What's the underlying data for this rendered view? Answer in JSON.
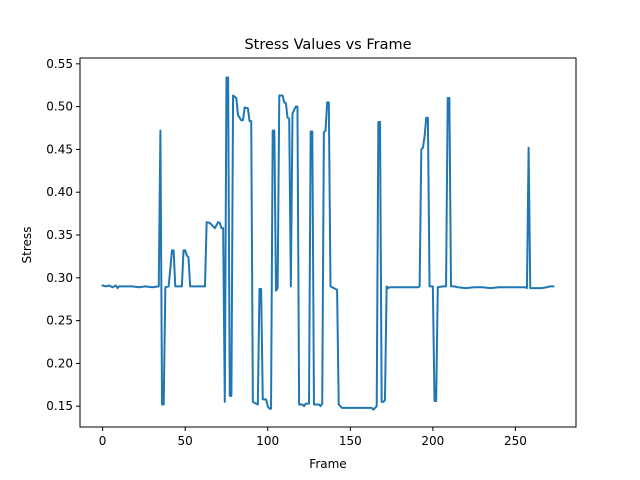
{
  "chart_data": {
    "type": "line",
    "title": "Stress Values vs Frame",
    "xlabel": "Frame",
    "ylabel": "Stress",
    "xlim": [
      -13.7,
      286.7
    ],
    "ylim": [
      0.1257,
      0.5568
    ],
    "xticks": [
      0,
      50,
      100,
      150,
      200,
      250
    ],
    "yticks": [
      0.15,
      0.2,
      0.25,
      0.3,
      0.35,
      0.4,
      0.45,
      0.5,
      0.55
    ],
    "ytick_labels": [
      "0.15",
      "0.20",
      "0.25",
      "0.30",
      "0.35",
      "0.40",
      "0.45",
      "0.50",
      "0.55"
    ],
    "grid": false,
    "series": [
      {
        "color": "#1f77b4",
        "points": [
          [
            0,
            0.291
          ],
          [
            2,
            0.29
          ],
          [
            4,
            0.291
          ],
          [
            6,
            0.289
          ],
          [
            8,
            0.291
          ],
          [
            9,
            0.288
          ],
          [
            10,
            0.29
          ],
          [
            14,
            0.29
          ],
          [
            18,
            0.29
          ],
          [
            22,
            0.289
          ],
          [
            26,
            0.29
          ],
          [
            30,
            0.289
          ],
          [
            34,
            0.29
          ],
          [
            35,
            0.472
          ],
          [
            36,
            0.152
          ],
          [
            37,
            0.152
          ],
          [
            38,
            0.289
          ],
          [
            40,
            0.29
          ],
          [
            42,
            0.332
          ],
          [
            43,
            0.332
          ],
          [
            44,
            0.29
          ],
          [
            48,
            0.29
          ],
          [
            49,
            0.332
          ],
          [
            50,
            0.332
          ],
          [
            51,
            0.326
          ],
          [
            52,
            0.324
          ],
          [
            53,
            0.29
          ],
          [
            58,
            0.29
          ],
          [
            62,
            0.29
          ],
          [
            63,
            0.365
          ],
          [
            65,
            0.364
          ],
          [
            67,
            0.36
          ],
          [
            68,
            0.358
          ],
          [
            70,
            0.365
          ],
          [
            71,
            0.364
          ],
          [
            72,
            0.358
          ],
          [
            73,
            0.358
          ],
          [
            74,
            0.155
          ],
          [
            75,
            0.534
          ],
          [
            76,
            0.534
          ],
          [
            77,
            0.162
          ],
          [
            78,
            0.162
          ],
          [
            79,
            0.513
          ],
          [
            81,
            0.51
          ],
          [
            82,
            0.49
          ],
          [
            84,
            0.484
          ],
          [
            85,
            0.484
          ],
          [
            86,
            0.499
          ],
          [
            88,
            0.498
          ],
          [
            89,
            0.483
          ],
          [
            90,
            0.483
          ],
          [
            91,
            0.155
          ],
          [
            93,
            0.153
          ],
          [
            94,
            0.152
          ],
          [
            95,
            0.287
          ],
          [
            96,
            0.287
          ],
          [
            97,
            0.158
          ],
          [
            98,
            0.158
          ],
          [
            99,
            0.158
          ],
          [
            100,
            0.15
          ],
          [
            101,
            0.147
          ],
          [
            102,
            0.147
          ],
          [
            103,
            0.472
          ],
          [
            104,
            0.472
          ],
          [
            105,
            0.285
          ],
          [
            106,
            0.288
          ],
          [
            107,
            0.513
          ],
          [
            109,
            0.513
          ],
          [
            110,
            0.505
          ],
          [
            111,
            0.504
          ],
          [
            112,
            0.487
          ],
          [
            113,
            0.486
          ],
          [
            114,
            0.29
          ],
          [
            115,
            0.492
          ],
          [
            117,
            0.5
          ],
          [
            118,
            0.5
          ],
          [
            119,
            0.152
          ],
          [
            121,
            0.152
          ],
          [
            122,
            0.15
          ],
          [
            123,
            0.153
          ],
          [
            125,
            0.153
          ],
          [
            126,
            0.471
          ],
          [
            127,
            0.471
          ],
          [
            128,
            0.152
          ],
          [
            131,
            0.152
          ],
          [
            132,
            0.15
          ],
          [
            133,
            0.153
          ],
          [
            134,
            0.47
          ],
          [
            135,
            0.472
          ],
          [
            136,
            0.505
          ],
          [
            137,
            0.505
          ],
          [
            138,
            0.29
          ],
          [
            139,
            0.289
          ],
          [
            140,
            0.288
          ],
          [
            142,
            0.286
          ],
          [
            143,
            0.152
          ],
          [
            144,
            0.15
          ],
          [
            145,
            0.148
          ],
          [
            150,
            0.148
          ],
          [
            155,
            0.148
          ],
          [
            160,
            0.148
          ],
          [
            163,
            0.148
          ],
          [
            164,
            0.146
          ],
          [
            166,
            0.15
          ],
          [
            167,
            0.482
          ],
          [
            168,
            0.482
          ],
          [
            169,
            0.155
          ],
          [
            170,
            0.155
          ],
          [
            171,
            0.157
          ],
          [
            172,
            0.29
          ],
          [
            173,
            0.288
          ],
          [
            174,
            0.289
          ],
          [
            180,
            0.289
          ],
          [
            186,
            0.289
          ],
          [
            191,
            0.289
          ],
          [
            192,
            0.29
          ],
          [
            193,
            0.45
          ],
          [
            194,
            0.452
          ],
          [
            195,
            0.465
          ],
          [
            196,
            0.487
          ],
          [
            197,
            0.487
          ],
          [
            198,
            0.29
          ],
          [
            200,
            0.29
          ],
          [
            201,
            0.156
          ],
          [
            202,
            0.156
          ],
          [
            203,
            0.289
          ],
          [
            206,
            0.29
          ],
          [
            208,
            0.29
          ],
          [
            209,
            0.51
          ],
          [
            210,
            0.51
          ],
          [
            211,
            0.29
          ],
          [
            213,
            0.29
          ],
          [
            215,
            0.289
          ],
          [
            220,
            0.288
          ],
          [
            225,
            0.289
          ],
          [
            230,
            0.289
          ],
          [
            235,
            0.288
          ],
          [
            240,
            0.289
          ],
          [
            245,
            0.289
          ],
          [
            250,
            0.289
          ],
          [
            254,
            0.289
          ],
          [
            256,
            0.289
          ],
          [
            257,
            0.288
          ],
          [
            258,
            0.452
          ],
          [
            259,
            0.288
          ],
          [
            262,
            0.288
          ],
          [
            266,
            0.288
          ],
          [
            269,
            0.289
          ],
          [
            271,
            0.29
          ],
          [
            273,
            0.29
          ]
        ]
      }
    ]
  }
}
